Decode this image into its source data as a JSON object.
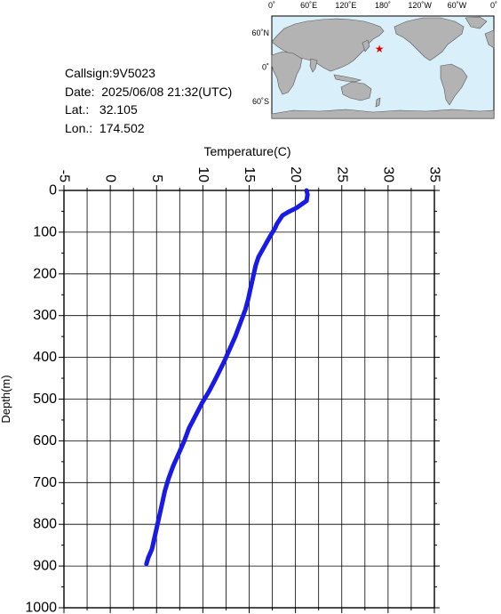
{
  "info": {
    "callsign": "Callsign:9V5023",
    "date": "Date:  2025/06/08 21:32(UTC)",
    "lat": "Lat.:   32.105",
    "lon": "Lon.:  174.502"
  },
  "map": {
    "top_labels": [
      "0˚",
      "60˚E",
      "120˚E",
      "180˚",
      "120˚W",
      "60˚W",
      "0˚"
    ],
    "side_labels": [
      "60˚N",
      "0˚",
      "60˚S"
    ],
    "marker": {
      "lon": 174.502,
      "lat": 32.105,
      "color": "#e00000"
    },
    "ocean_color": "#d9f0fa",
    "land_color": "#b3b3b3"
  },
  "chart_data": {
    "type": "line",
    "xlabel": "Temperature(C)",
    "ylabel": "Depth(m)",
    "xlim": [
      -5,
      35
    ],
    "ylim": [
      1000,
      0
    ],
    "x_ticks": [
      "-5",
      "0",
      "5",
      "10",
      "15",
      "20",
      "25",
      "30",
      "35"
    ],
    "y_ticks": [
      "0",
      "100",
      "200",
      "300",
      "400",
      "500",
      "600",
      "700",
      "800",
      "900",
      "1000"
    ],
    "grid": true,
    "line_color": "#1a1ae6",
    "series": [
      {
        "x": [
          21.2,
          21.3,
          21.2,
          20.1,
          19.2,
          18.6,
          18.3,
          18.0,
          17.8,
          17.4,
          17.0,
          16.5,
          16.0,
          15.7,
          15.5,
          15.3,
          15.1,
          14.9,
          14.6,
          14.0,
          13.5,
          12.9,
          12.3,
          11.4,
          10.7,
          9.9,
          9.2,
          8.5,
          8.0,
          7.4,
          6.8,
          6.3,
          5.9,
          5.6,
          5.3,
          4.9,
          4.5,
          4.1,
          3.9
        ],
        "y": [
          0,
          10,
          25,
          42,
          52,
          60,
          70,
          80,
          90,
          105,
          120,
          140,
          160,
          180,
          200,
          220,
          240,
          260,
          285,
          320,
          350,
          380,
          410,
          450,
          480,
          510,
          540,
          570,
          600,
          630,
          660,
          690,
          720,
          750,
          780,
          820,
          860,
          880,
          895
        ]
      }
    ]
  }
}
